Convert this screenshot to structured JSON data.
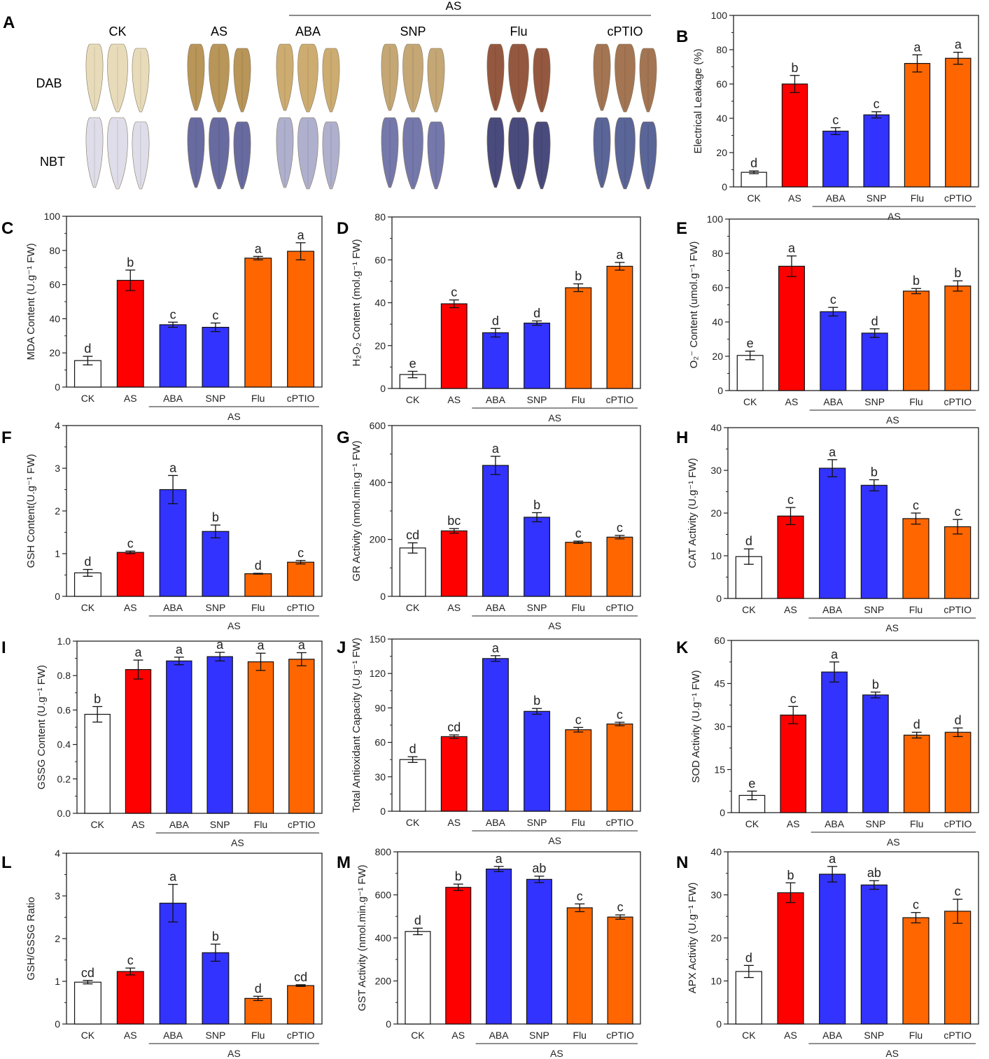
{
  "panel_a": {
    "label": "A",
    "treatment_header": "AS",
    "columns": [
      "CK",
      "AS",
      "ABA",
      "SNP",
      "Flu",
      "cPTIO"
    ],
    "rows": [
      "DAB",
      "NBT"
    ],
    "colors": {
      "dab_ck": "#e6d9b5",
      "dab_as": "#b38d4a",
      "dab_aba": "#c9a665",
      "dab_snp": "#bfa06a",
      "dab_flu": "#8c4a30",
      "dab_cptio": "#9c6a45",
      "nbt_ck": "#dcdbe8",
      "nbt_as": "#5c5f98",
      "nbt_aba": "#a8aac9",
      "nbt_snp": "#6a6da3",
      "nbt_flu": "#3b3c72",
      "nbt_cptio": "#4d5890"
    }
  },
  "group_label": "AS",
  "categories": [
    "CK",
    "AS",
    "ABA",
    "SNP",
    "Flu",
    "cPTIO"
  ],
  "bar_colors": [
    "#ffffff",
    "#ff0000",
    "#3333ff",
    "#3333ff",
    "#ff6600",
    "#ff6600"
  ],
  "chart_data": [
    {
      "id": "B",
      "label": "B",
      "type": "bar",
      "ylabel": "Electrical Leakage (%)",
      "ylim": [
        0,
        100
      ],
      "yticks": [
        0,
        20,
        40,
        60,
        80,
        100
      ],
      "values": [
        8.5,
        60,
        32.5,
        42,
        72,
        75
      ],
      "errors": [
        0.8,
        5,
        2,
        1.8,
        5,
        3.5
      ],
      "letters": [
        "d",
        "b",
        "c",
        "c",
        "a",
        "a"
      ]
    },
    {
      "id": "C",
      "label": "C",
      "type": "bar",
      "ylabel": "MDA Content (U.g⁻¹ FW)",
      "ylim": [
        0,
        100
      ],
      "yticks": [
        0,
        20,
        40,
        60,
        80,
        100
      ],
      "values": [
        15.5,
        62.5,
        36.5,
        35,
        75.5,
        79.5
      ],
      "errors": [
        2.5,
        6,
        1.5,
        2.5,
        1,
        5
      ],
      "letters": [
        "d",
        "b",
        "c",
        "c",
        "a",
        "a"
      ]
    },
    {
      "id": "D",
      "label": "D",
      "type": "bar",
      "ylabel": "H₂O₂ Content (mol.g⁻¹ FW)",
      "ylim": [
        0,
        80
      ],
      "yticks": [
        0,
        20,
        40,
        60,
        80
      ],
      "values": [
        6.5,
        39.5,
        26,
        30.5,
        47,
        57
      ],
      "errors": [
        1.5,
        1.8,
        2,
        1,
        1.8,
        1.8
      ],
      "letters": [
        "e",
        "c",
        "d",
        "d",
        "b",
        "a"
      ]
    },
    {
      "id": "E",
      "label": "E",
      "type": "bar",
      "ylabel": "O₂⁻ Content (umol.g⁻¹ FW)",
      "ylim": [
        0,
        100
      ],
      "yticks": [
        0,
        20,
        40,
        60,
        80,
        100
      ],
      "values": [
        20.5,
        72.5,
        46,
        33.5,
        58,
        61
      ],
      "errors": [
        2.5,
        6,
        2.5,
        2.5,
        1.5,
        3
      ],
      "letters": [
        "e",
        "a",
        "c",
        "d",
        "b",
        "b"
      ]
    },
    {
      "id": "F",
      "label": "F",
      "type": "bar",
      "ylabel": "GSH Content(U.g⁻¹ FW)",
      "ylim": [
        0,
        4
      ],
      "yticks": [
        0,
        1,
        2,
        3,
        4
      ],
      "values": [
        0.55,
        1.03,
        2.5,
        1.52,
        0.53,
        0.8
      ],
      "errors": [
        0.08,
        0.03,
        0.33,
        0.15,
        0.01,
        0.04
      ],
      "letters": [
        "d",
        "c",
        "a",
        "b",
        "d",
        "c"
      ]
    },
    {
      "id": "G",
      "label": "G",
      "type": "bar",
      "ylabel": "GR Activity (nmol.min.g⁻¹ FW)",
      "ylim": [
        0,
        600
      ],
      "yticks": [
        0,
        200,
        400,
        600
      ],
      "values": [
        170,
        230,
        460,
        278,
        190,
        208
      ],
      "errors": [
        18,
        8,
        32,
        16,
        4,
        6
      ],
      "letters": [
        "cd",
        "bc",
        "a",
        "b",
        "c",
        "c"
      ]
    },
    {
      "id": "H",
      "label": "H",
      "type": "bar",
      "ylabel": "CAT Activity (U.g⁻¹ FW)",
      "ylim": [
        0,
        40
      ],
      "yticks": [
        0,
        10,
        20,
        30,
        40
      ],
      "values": [
        9.8,
        19.3,
        30.5,
        26.5,
        18.7,
        16.8
      ],
      "errors": [
        1.8,
        2,
        2,
        1.3,
        1.3,
        1.7
      ],
      "letters": [
        "d",
        "c",
        "a",
        "b",
        "c",
        "c"
      ]
    },
    {
      "id": "I",
      "label": "I",
      "type": "bar",
      "ylabel": "GSSG Content (U.g⁻¹ FW)",
      "ylim": [
        0,
        1.0
      ],
      "yticks": [
        0.0,
        0.2,
        0.4,
        0.6,
        0.8,
        1.0
      ],
      "ytick_decimals": 1,
      "values": [
        0.575,
        0.835,
        0.885,
        0.91,
        0.88,
        0.895
      ],
      "errors": [
        0.045,
        0.055,
        0.022,
        0.025,
        0.05,
        0.038
      ],
      "letters": [
        "b",
        "a",
        "a",
        "a",
        "a",
        "a"
      ]
    },
    {
      "id": "J",
      "label": "J",
      "type": "bar",
      "ylabel": "Total Antioxidant Capacity (U.g⁻¹ FW)",
      "ylim": [
        0,
        150
      ],
      "yticks": [
        0,
        30,
        60,
        90,
        120,
        150
      ],
      "values": [
        45,
        65,
        133,
        87,
        71,
        76
      ],
      "errors": [
        2.5,
        1.5,
        2.5,
        2.5,
        2,
        1.5
      ],
      "letters": [
        "d",
        "cd",
        "a",
        "b",
        "c",
        "c"
      ]
    },
    {
      "id": "K",
      "label": "K",
      "type": "bar",
      "ylabel": "SOD Activity (U.g⁻¹ FW)",
      "ylim": [
        0,
        60
      ],
      "yticks": [
        0,
        15,
        30,
        45,
        60
      ],
      "values": [
        6,
        34,
        49,
        41,
        27,
        28
      ],
      "errors": [
        1.5,
        3,
        3.5,
        1,
        1,
        1.5
      ],
      "letters": [
        "e",
        "c",
        "a",
        "b",
        "d",
        "d"
      ]
    },
    {
      "id": "L",
      "label": "L",
      "type": "bar",
      "ylabel": "GSH/GSSG Ratio",
      "ylim": [
        0,
        4
      ],
      "yticks": [
        0,
        1,
        2,
        3,
        4
      ],
      "values": [
        0.98,
        1.23,
        2.83,
        1.67,
        0.6,
        0.9
      ],
      "errors": [
        0.04,
        0.08,
        0.44,
        0.2,
        0.05,
        0.02
      ],
      "letters": [
        "cd",
        "c",
        "a",
        "b",
        "d",
        "cd"
      ]
    },
    {
      "id": "M",
      "label": "M",
      "type": "bar",
      "ylabel": "GST Activity (nmol.min.g⁻¹ FW)",
      "ylim": [
        0,
        800
      ],
      "yticks": [
        0,
        200,
        400,
        600,
        800
      ],
      "values": [
        430,
        635,
        720,
        672,
        540,
        497
      ],
      "errors": [
        15,
        15,
        12,
        15,
        18,
        10
      ],
      "letters": [
        "d",
        "b",
        "a",
        "ab",
        "c",
        "c"
      ]
    },
    {
      "id": "N",
      "label": "N",
      "type": "bar",
      "ylabel": "APX Activity (U.g⁻¹ FW)",
      "ylim": [
        0,
        40
      ],
      "yticks": [
        0,
        10,
        20,
        30,
        40
      ],
      "values": [
        12.2,
        30.5,
        34.8,
        32.3,
        24.7,
        26.2
      ],
      "errors": [
        1.4,
        2.3,
        1.8,
        1,
        1.2,
        2.8
      ],
      "letters": [
        "d",
        "b",
        "a",
        "ab",
        "c",
        "c"
      ]
    }
  ]
}
